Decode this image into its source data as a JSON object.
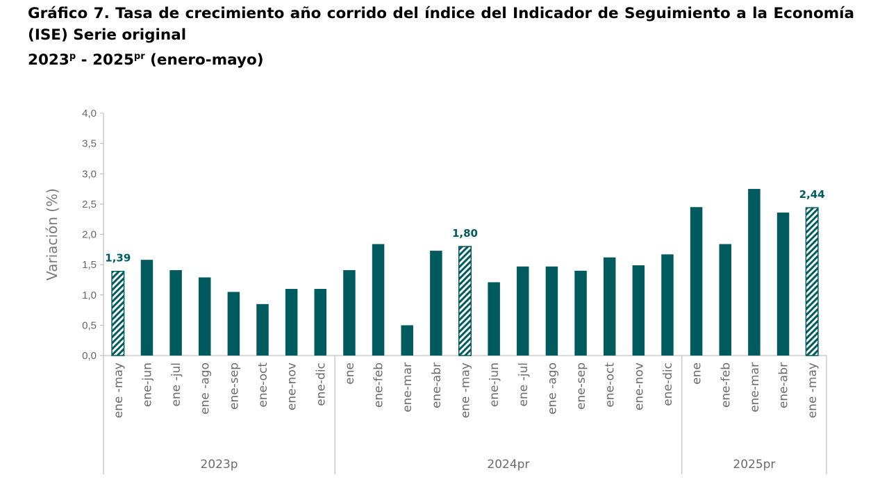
{
  "title": {
    "line1": "Gráfico 7. Tasa de crecimiento año corrido del índice del Indicador de Seguimiento a la Economía",
    "line2": "(ISE) Serie original",
    "years": {
      "y1": "2023",
      "s1": "p",
      "sep": " - ",
      "y2": "2025",
      "s2": "pr",
      "range": " (enero-mayo)"
    }
  },
  "colors": {
    "bar": "#005b5f",
    "label": "#005b5f",
    "axis": "#b3b3b3"
  },
  "chart_data": {
    "type": "bar",
    "ylabel": "Variación (%)",
    "ylim": [
      0,
      4.0
    ],
    "yticks": [
      "0,0",
      "0,5",
      "1,0",
      "1,5",
      "2,0",
      "2,5",
      "3,0",
      "3,5",
      "4,0"
    ],
    "grid": false,
    "groups": [
      {
        "name": "2023p",
        "categories": [
          "ene -may",
          "ene-jun",
          "ene -jul",
          "ene -ago",
          "ene-sep",
          "ene-oct",
          "ene-nov",
          "ene-dic"
        ],
        "values": [
          1.39,
          1.58,
          1.41,
          1.29,
          1.05,
          0.85,
          1.1,
          1.1
        ],
        "hatched": [
          true,
          false,
          false,
          false,
          false,
          false,
          false,
          false
        ]
      },
      {
        "name": "2024pr",
        "categories": [
          "ene",
          "ene-feb",
          "ene-mar",
          "ene-abr",
          "ene -may",
          "ene-jun",
          "ene -jul",
          "ene -ago",
          "ene-sep",
          "ene-oct",
          "ene-nov",
          "ene-dic"
        ],
        "values": [
          1.41,
          1.84,
          0.5,
          1.73,
          1.8,
          1.21,
          1.47,
          1.47,
          1.4,
          1.62,
          1.49,
          1.67
        ],
        "hatched": [
          false,
          false,
          false,
          false,
          true,
          false,
          false,
          false,
          false,
          false,
          false,
          false
        ]
      },
      {
        "name": "2025pr",
        "categories": [
          "ene",
          "ene-feb",
          "ene-mar",
          "ene-abr",
          "ene -may"
        ],
        "values": [
          2.45,
          1.84,
          2.75,
          2.36,
          2.44
        ],
        "hatched": [
          false,
          false,
          false,
          false,
          true
        ]
      }
    ],
    "data_labels": [
      {
        "group": 0,
        "index": 0,
        "text": "1,39"
      },
      {
        "group": 1,
        "index": 4,
        "text": "1,80"
      },
      {
        "group": 2,
        "index": 4,
        "text": "2,44"
      }
    ]
  }
}
